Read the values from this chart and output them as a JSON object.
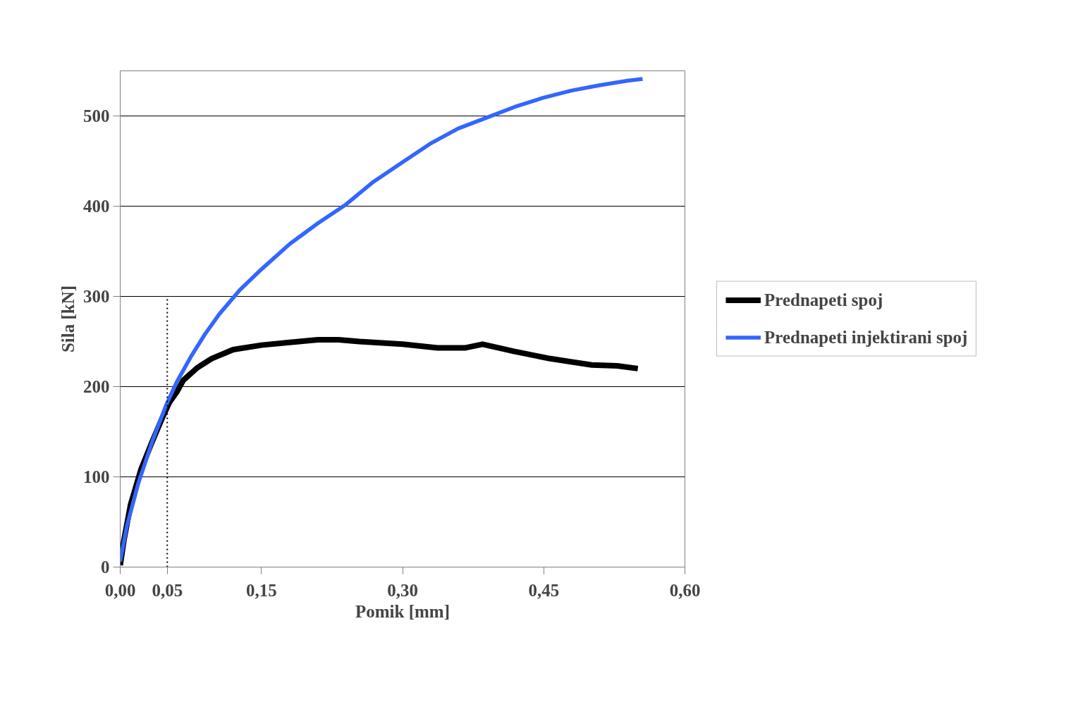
{
  "chart_data": {
    "type": "line",
    "xlabel": "Pomik [mm]",
    "ylabel": "Sila [kN]",
    "xlim": [
      0,
      0.6
    ],
    "ylim": [
      0,
      550
    ],
    "xticks": [
      {
        "value": 0,
        "label": "0,00"
      },
      {
        "value": 0.05,
        "label": "0,05"
      },
      {
        "value": 0.15,
        "label": "0,15"
      },
      {
        "value": 0.3,
        "label": "0,30"
      },
      {
        "value": 0.45,
        "label": "0,45"
      },
      {
        "value": 0.6,
        "label": "0,60"
      }
    ],
    "yticks": [
      0,
      100,
      200,
      300,
      400,
      500
    ],
    "grid": "y",
    "legend": "right",
    "marker": "none",
    "series": [
      {
        "name": "Prednapeti spoj",
        "color": "#000000",
        "x": [
          0,
          0.004,
          0.011,
          0.022,
          0.034,
          0.045,
          0.052,
          0.06,
          0.067,
          0.082,
          0.097,
          0.12,
          0.15,
          0.18,
          0.21,
          0.232,
          0.254,
          0.3,
          0.337,
          0.367,
          0.385,
          0.419,
          0.457,
          0.501,
          0.528,
          0.55
        ],
        "values": [
          2,
          30,
          69,
          108,
          139,
          166,
          182,
          194,
          207,
          221,
          231,
          241,
          246,
          249,
          252,
          252,
          250,
          247,
          243,
          243,
          247,
          239,
          231,
          224,
          223,
          220
        ]
      },
      {
        "name": "Prednapeti injektirani spoj",
        "color": "#3366ff",
        "x": [
          0,
          0.007,
          0.019,
          0.034,
          0.049,
          0.06,
          0.075,
          0.09,
          0.105,
          0.127,
          0.15,
          0.18,
          0.21,
          0.24,
          0.269,
          0.299,
          0.329,
          0.359,
          0.389,
          0.419,
          0.449,
          0.479,
          0.509,
          0.539,
          0.555
        ],
        "values": [
          6,
          45,
          92,
          139,
          180,
          205,
          233,
          258,
          280,
          307,
          330,
          358,
          381,
          402,
          427,
          448,
          469,
          486,
          498,
          510,
          520,
          528,
          534,
          539,
          541
        ]
      },
      {
        "color": "#000000",
        "line_style": "dotted",
        "x": [
          0.05,
          0.05
        ],
        "values": [
          0,
          300
        ]
      }
    ]
  }
}
